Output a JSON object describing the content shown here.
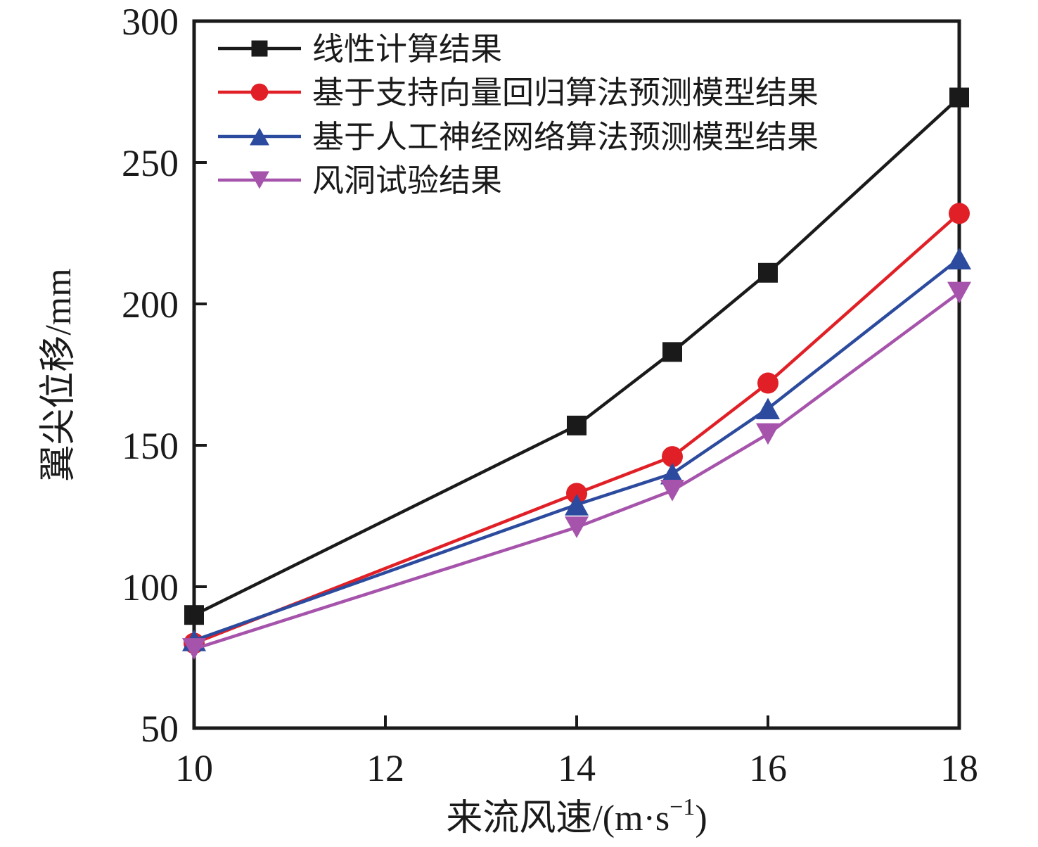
{
  "figure": {
    "background": "#ffffff",
    "text_color": "#1a1a1a"
  },
  "chart_data": {
    "type": "line",
    "title": "",
    "xlabel": "来流风速/(m·s⁻¹)",
    "xlabel_parts": {
      "pre": "来流风速/(m·s",
      "sup": "−1",
      "post": ")"
    },
    "ylabel": "翼尖位移/mm",
    "xlim": [
      10,
      18
    ],
    "ylim": [
      50,
      300
    ],
    "x_ticks": [
      "10",
      "12",
      "14",
      "16",
      "18"
    ],
    "x_tick_values": [
      10,
      12,
      14,
      16,
      18
    ],
    "y_ticks": [
      "50",
      "100",
      "150",
      "200",
      "250",
      "300"
    ],
    "y_tick_values": [
      50,
      100,
      150,
      200,
      250,
      300
    ],
    "grid": false,
    "legend_position": "top-left-inside",
    "x": [
      10,
      14,
      15,
      16,
      18
    ],
    "series": [
      {
        "name": "线性计算结果",
        "color": "#1a1a1a",
        "marker": "square",
        "values": [
          90,
          157,
          183,
          211,
          273
        ]
      },
      {
        "name": "基于支持向量回归算法预测模型结果",
        "color": "#e02026",
        "marker": "circle",
        "values": [
          80,
          133,
          146,
          172,
          232
        ]
      },
      {
        "name": "基于人工神经网络算法预测模型结果",
        "color": "#2c4b9e",
        "marker": "triangle-up",
        "values": [
          81,
          129,
          140,
          163,
          216
        ]
      },
      {
        "name": "风洞试验结果",
        "color": "#a653ab",
        "marker": "triangle-down",
        "values": [
          78,
          121,
          134,
          154,
          204
        ]
      }
    ]
  }
}
